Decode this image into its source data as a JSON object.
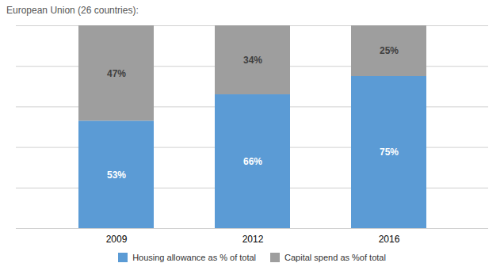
{
  "chart_data": {
    "type": "bar",
    "subtitle": "European Union (26 countries):",
    "categories": [
      "2009",
      "2012",
      "2016"
    ],
    "series": [
      {
        "name": "Housing allowance as % of total",
        "color": "#5B9BD5",
        "values": [
          53,
          66,
          75
        ],
        "value_labels": [
          "53%",
          "66%",
          "75%"
        ]
      },
      {
        "name": "Capital spend as %of total",
        "color": "#9E9E9E",
        "values": [
          47,
          34,
          25
        ],
        "value_labels": [
          "47%",
          "34%",
          "25%"
        ]
      }
    ],
    "stacked": true,
    "ylim": [
      0,
      100
    ],
    "yticks": [
      0,
      20,
      40,
      60,
      80,
      100
    ],
    "grid": true,
    "legend": "bottom",
    "data_labels": true,
    "tick_labels": "x"
  }
}
